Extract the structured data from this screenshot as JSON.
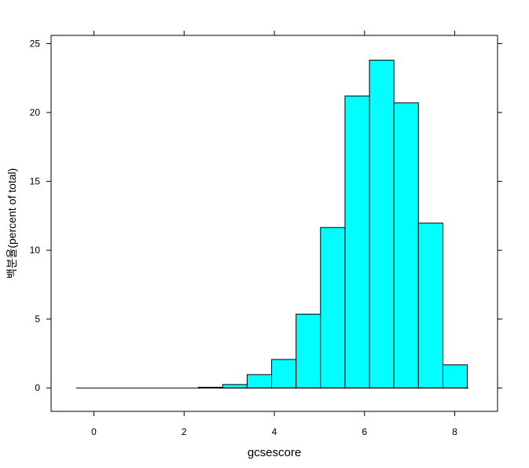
{
  "chart_data": {
    "type": "bar",
    "title": "",
    "xlabel": "gcsescore",
    "ylabel": "백분율(percent of total)",
    "xlim": [
      -0.95,
      8.95
    ],
    "ylim": [
      -1.7,
      25.6
    ],
    "xticks": [
      0,
      2,
      4,
      6,
      8
    ],
    "yticks": [
      0,
      5,
      10,
      15,
      20,
      25
    ],
    "grid": false,
    "legend": "none",
    "bar_fill": "#00ffff",
    "bar_edge": "#000000",
    "bin_width": 0.5425,
    "bin_starts": [
      -0.4,
      0.1425,
      0.685,
      1.2275,
      1.77,
      2.3125,
      2.855,
      3.3975,
      3.94,
      4.4825,
      5.025,
      5.5675,
      6.11,
      6.6525,
      7.195,
      7.7375,
      8.28
    ],
    "values": [
      0.0,
      0.0,
      0.0,
      0.0,
      0.0,
      0.05,
      0.25,
      0.97,
      2.07,
      5.36,
      11.65,
      21.2,
      23.8,
      20.7,
      11.97,
      1.68
    ],
    "x_end": 8.28
  }
}
